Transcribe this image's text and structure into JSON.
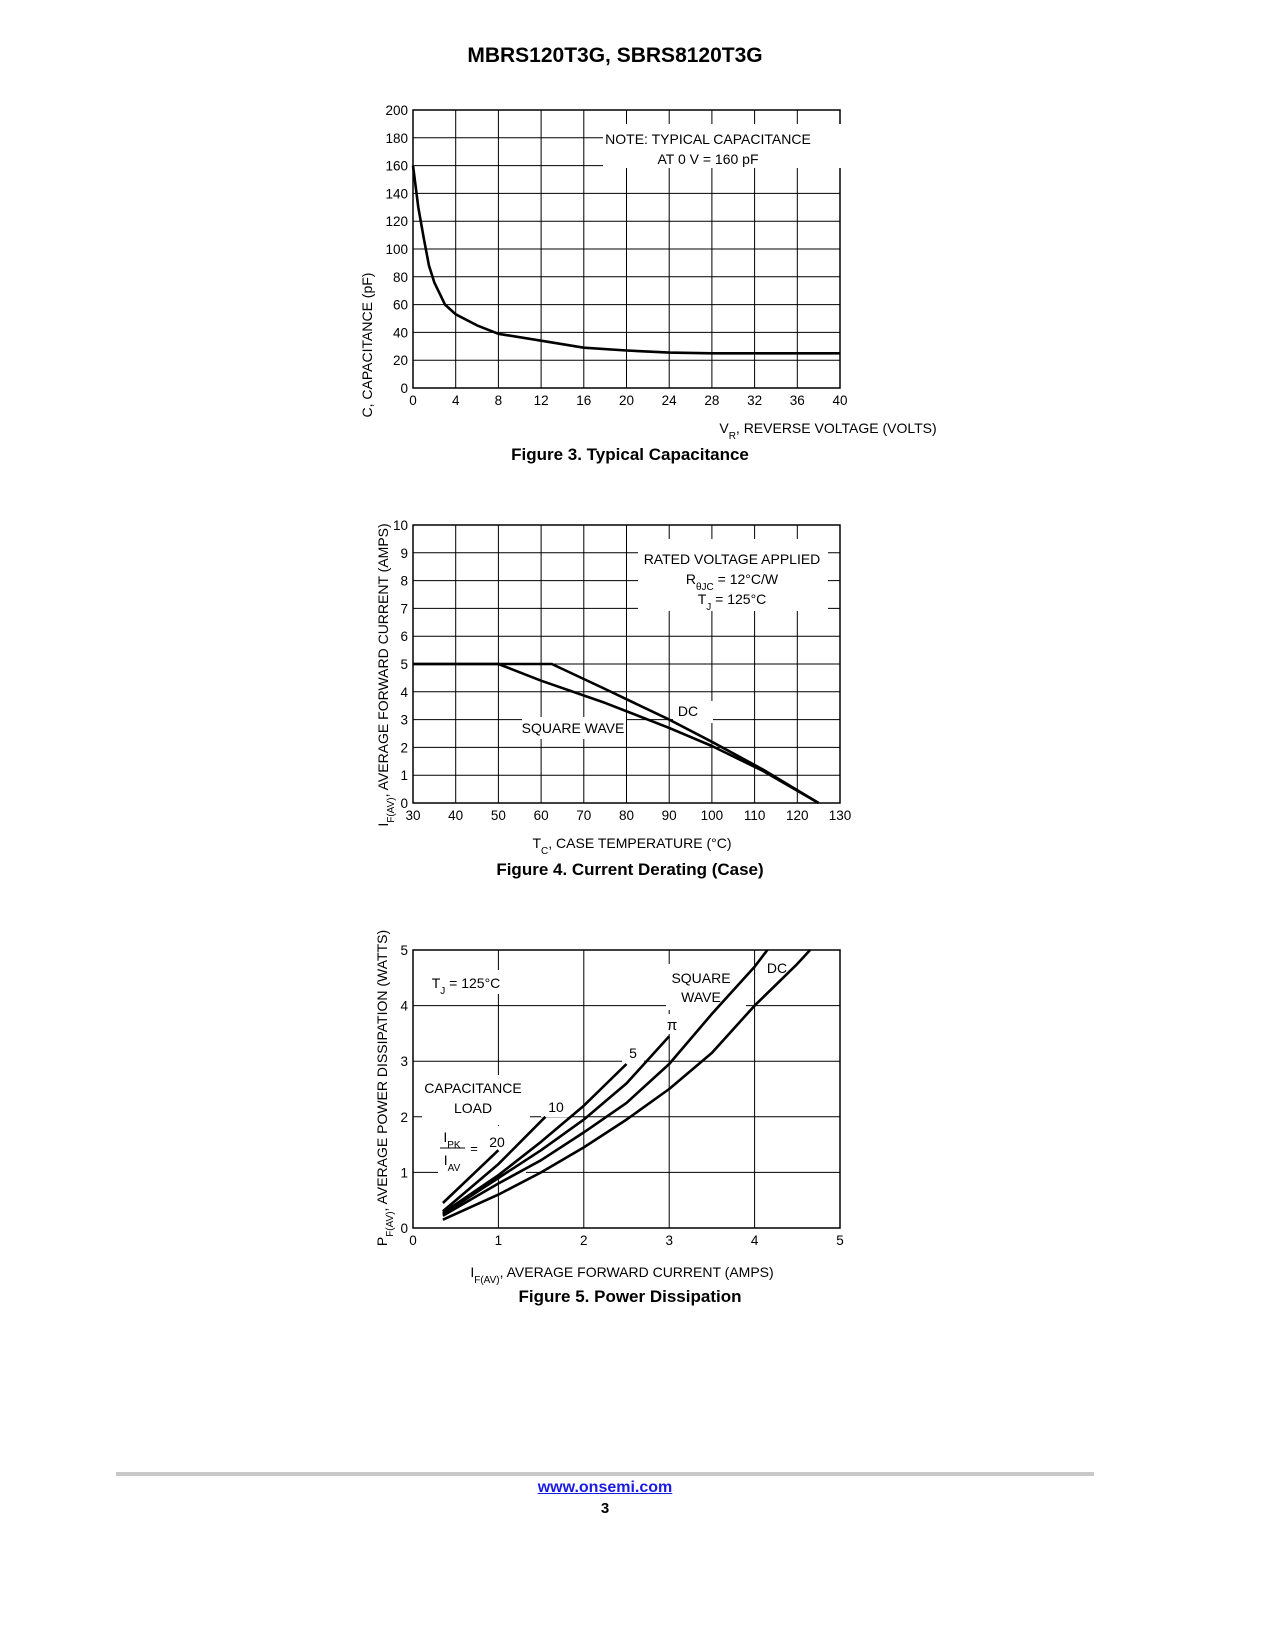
{
  "doc_title": "MBRS120T3G, SBRS8120T3G",
  "footer": {
    "link": "www.onsemi.com",
    "page": "3"
  },
  "chart_data": [
    {
      "id": "fig3",
      "type": "line",
      "caption": "Figure 3. Typical Capacitance",
      "ylabel": "C, CAPACITANCE (pF)",
      "xlabel_main": "V",
      "xlabel_sub": "R",
      "xlabel_rest": ", REVERSE VOLTAGE (VOLTS)",
      "xlim": [
        0,
        40
      ],
      "ylim": [
        0,
        200
      ],
      "xticks": [
        0,
        4,
        8,
        12,
        16,
        20,
        24,
        28,
        32,
        36,
        40
      ],
      "yticks": [
        0,
        20,
        40,
        60,
        80,
        100,
        120,
        140,
        160,
        180,
        200
      ],
      "grid": true,
      "annotations": [
        "NOTE: TYPICAL CAPACITANCE",
        "AT 0 V = 160 pF"
      ],
      "series": [
        {
          "x": [
            0,
            0.5,
            1,
            1.5,
            2,
            3,
            4,
            6,
            8,
            12,
            16,
            20,
            24,
            28,
            32,
            36,
            40
          ],
          "y": [
            160,
            130,
            108,
            88,
            76,
            60,
            53,
            45,
            39,
            34,
            29,
            27,
            25.5,
            25,
            25,
            25,
            25
          ]
        }
      ]
    },
    {
      "id": "fig4",
      "type": "line",
      "caption": "Figure 4. Current Derating (Case)",
      "ylabel_main": "I",
      "ylabel_sub": "F(AV)",
      "ylabel_rest": ", AVERAGE FORWARD CURRENT (AMPS)",
      "xlabel_main": "T",
      "xlabel_sub": "C",
      "xlabel_rest": ", CASE TEMPERATURE (°C)",
      "xlim": [
        30,
        130
      ],
      "ylim": [
        0,
        10
      ],
      "xticks": [
        30,
        40,
        50,
        60,
        70,
        80,
        90,
        100,
        110,
        120,
        130
      ],
      "yticks": [
        0,
        1,
        2,
        3,
        4,
        5,
        6,
        7,
        8,
        9,
        10
      ],
      "grid": true,
      "annotations": [
        "RATED VOLTAGE APPLIED",
        "R",
        "θJC",
        " = 12°C/W",
        "T",
        "J",
        " = 125°C"
      ],
      "series": [
        {
          "name": "DC",
          "x": [
            30,
            62.5,
            75,
            90,
            100,
            112,
            125
          ],
          "y": [
            5,
            5,
            4.1,
            3,
            2.2,
            1.2,
            0
          ]
        },
        {
          "name": "SQUARE WAVE",
          "x": [
            30,
            50,
            60,
            75,
            90,
            100,
            112,
            125
          ],
          "y": [
            5,
            5,
            4.4,
            3.6,
            2.7,
            2.05,
            1.15,
            0
          ]
        }
      ]
    },
    {
      "id": "fig5",
      "type": "line",
      "caption": "Figure 5. Power Dissipation",
      "ylabel_main": "P",
      "ylabel_sub": "F(AV)",
      "ylabel_rest": ", AVERAGE POWER DISSIPATION (WATTS)",
      "xlabel_main": "I",
      "xlabel_sub": "F(AV)",
      "xlabel_rest": ", AVERAGE FORWARD CURRENT (AMPS)",
      "xlim": [
        0,
        5
      ],
      "ylim": [
        0,
        5
      ],
      "xticks": [
        0,
        1,
        2,
        3,
        4,
        5
      ],
      "yticks": [
        0,
        1,
        2,
        3,
        4,
        5
      ],
      "grid": true,
      "annotations": {
        "tj_main": "T",
        "tj_sub": "J",
        "tj_rest": " = 125°C",
        "square1": "SQUARE",
        "square2": "WAVE",
        "cap1": "CAPACITANCE",
        "cap2": "LOAD",
        "ipk_main": "I",
        "ipk_sub": "PK",
        "iav_main": "I",
        "iav_sub": "AV",
        "eq": "="
      },
      "series": [
        {
          "name": "20",
          "x": [
            0.35,
            1.0
          ],
          "y": [
            0.45,
            1.4
          ]
        },
        {
          "name": "10",
          "x": [
            0.35,
            1.0,
            1.55
          ],
          "y": [
            0.3,
            1.15,
            2.0
          ]
        },
        {
          "name": "5",
          "x": [
            0.35,
            1.0,
            1.5,
            2.0,
            2.5
          ],
          "y": [
            0.27,
            0.95,
            1.55,
            2.2,
            2.95
          ]
        },
        {
          "name": "π",
          "x": [
            0.35,
            1.0,
            1.5,
            2.0,
            2.5,
            3.0
          ],
          "y": [
            0.25,
            0.9,
            1.4,
            1.95,
            2.6,
            3.45
          ]
        },
        {
          "name": "SQUARE WAVE",
          "x": [
            0.35,
            1.0,
            1.5,
            2.0,
            2.5,
            3.0,
            3.5,
            4.0,
            4.15
          ],
          "y": [
            0.22,
            0.8,
            1.22,
            1.72,
            2.25,
            2.95,
            3.85,
            4.7,
            5.0
          ]
        },
        {
          "name": "DC",
          "x": [
            0.35,
            1.0,
            1.5,
            2.0,
            2.5,
            3.0,
            3.5,
            4.0,
            4.5,
            4.65
          ],
          "y": [
            0.15,
            0.6,
            1.0,
            1.45,
            1.95,
            2.5,
            3.15,
            4.0,
            4.75,
            5.0
          ]
        }
      ]
    }
  ]
}
